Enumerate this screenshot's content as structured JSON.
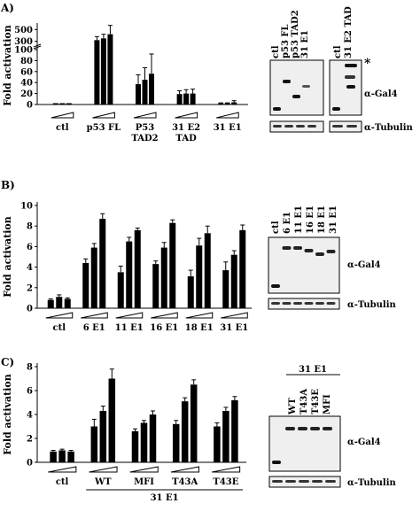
{
  "panels": [
    {
      "letter": "A)"
    },
    {
      "letter": "B)"
    },
    {
      "letter": "C)"
    }
  ],
  "chart_data": [
    {
      "type": "bar",
      "panel": "A",
      "ylabel": "Fold activation",
      "axis_break": true,
      "yticks_low": [
        0,
        20,
        40,
        60,
        80,
        100
      ],
      "yticks_high": [
        300,
        500
      ],
      "groups": [
        {
          "label": [
            "ctl"
          ],
          "values": [
            1,
            1,
            1
          ],
          "errors": [
            0,
            0,
            0
          ]
        },
        {
          "label": [
            "p53 FL"
          ],
          "values": [
            320,
            350,
            420
          ],
          "errors": [
            60,
            70,
            150
          ]
        },
        {
          "label": [
            "P53",
            "TAD2"
          ],
          "values": [
            37,
            45,
            56
          ],
          "errors": [
            17,
            22,
            36
          ]
        },
        {
          "label": [
            "31 E2",
            "TAD"
          ],
          "values": [
            19,
            20,
            20
          ],
          "errors": [
            6,
            7,
            8
          ]
        },
        {
          "label": [
            "31 E1"
          ],
          "values": [
            2,
            2,
            4
          ],
          "errors": [
            1,
            1,
            3
          ]
        }
      ]
    },
    {
      "type": "bar",
      "panel": "B",
      "ylabel": "Fold activation",
      "ylim": [
        0,
        10
      ],
      "yticks": [
        0,
        2,
        4,
        6,
        8,
        10
      ],
      "groups": [
        {
          "label": [
            "ctl"
          ],
          "values": [
            0.8,
            1.1,
            0.9
          ],
          "errors": [
            0.1,
            0.2,
            0.1
          ]
        },
        {
          "label": [
            "6 E1"
          ],
          "values": [
            4.4,
            5.9,
            8.7
          ],
          "errors": [
            0.4,
            0.4,
            0.5
          ]
        },
        {
          "label": [
            "11 E1"
          ],
          "values": [
            3.5,
            6.5,
            7.6
          ],
          "errors": [
            0.6,
            0.4,
            0.2
          ]
        },
        {
          "label": [
            "16 E1"
          ],
          "values": [
            4.3,
            5.9,
            8.3
          ],
          "errors": [
            0.3,
            0.5,
            0.3
          ]
        },
        {
          "label": [
            "18 E1"
          ],
          "values": [
            3.1,
            6.1,
            7.3
          ],
          "errors": [
            0.6,
            0.7,
            0.7
          ]
        },
        {
          "label": [
            "31 E1"
          ],
          "values": [
            3.7,
            5.2,
            7.6
          ],
          "errors": [
            0.8,
            0.4,
            0.5
          ]
        }
      ]
    },
    {
      "type": "bar",
      "panel": "C",
      "ylabel": "Fold activation",
      "ylim": [
        0,
        8
      ],
      "yticks": [
        0,
        2,
        4,
        6,
        8
      ],
      "group_caption": "31 E1",
      "groups": [
        {
          "label": [
            "ctl"
          ],
          "values": [
            0.9,
            1.0,
            0.9
          ],
          "errors": [
            0.1,
            0.1,
            0.1
          ]
        },
        {
          "label": [
            "WT"
          ],
          "values": [
            3.0,
            4.3,
            7.0
          ],
          "errors": [
            0.6,
            0.4,
            0.8
          ]
        },
        {
          "label": [
            "MFI"
          ],
          "values": [
            2.6,
            3.3,
            4.0
          ],
          "errors": [
            0.2,
            0.2,
            0.3
          ]
        },
        {
          "label": [
            "T43A"
          ],
          "values": [
            3.2,
            5.1,
            6.5
          ],
          "errors": [
            0.3,
            0.3,
            0.4
          ]
        },
        {
          "label": [
            "T43E"
          ],
          "values": [
            3.0,
            4.3,
            5.2
          ],
          "errors": [
            0.3,
            0.3,
            0.3
          ]
        }
      ]
    }
  ],
  "blots": [
    {
      "panel": "A",
      "lanes_left": [
        "ctl",
        "p53 FL",
        "p53 TAD2",
        "31 E1"
      ],
      "lanes_right": [
        "ctl",
        "31 E2 TAD"
      ],
      "asterisk": "*",
      "gal4_label": "α-Gal4",
      "tubulin_label": "α-Tubulin"
    },
    {
      "panel": "B",
      "lanes": [
        "ctl",
        "6 E1",
        "11 E1",
        "16 E1",
        "18 E1",
        "31 E1"
      ],
      "gal4_label": "α-Gal4",
      "tubulin_label": "α-Tubulin"
    },
    {
      "panel": "C",
      "header": "31 E1",
      "lanes": [
        "WT",
        "T43A",
        "T43E",
        "MFI"
      ],
      "gal4_label": "α-Gal4",
      "tubulin_label": "α-Tubulin"
    }
  ]
}
